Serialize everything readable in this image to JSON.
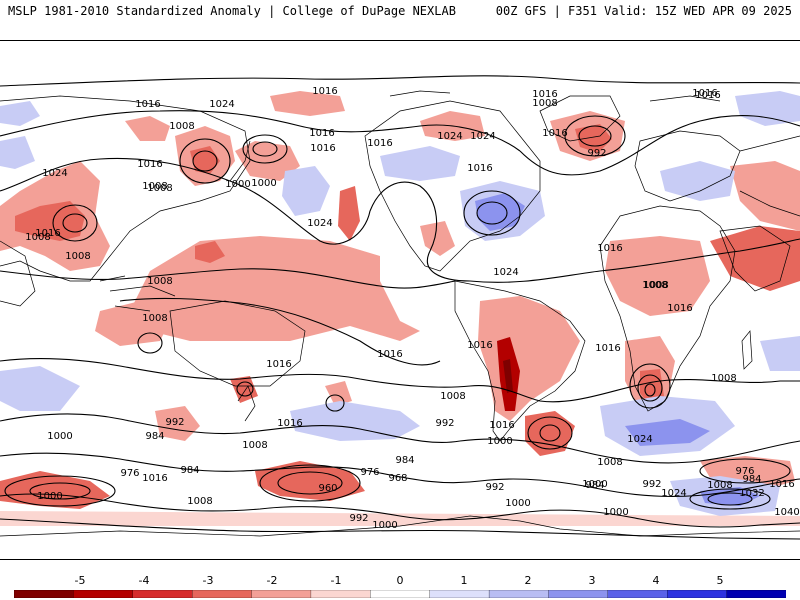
{
  "header": {
    "left": "MSLP 1981-2010 Standardized Anomaly | College of DuPage NEXLAB",
    "right": "00Z GFS | F351 Valid: 15Z WED APR 09 2025"
  },
  "colors": {
    "ocean": "#ffffff",
    "coast": "#000000",
    "isobar": "#000000",
    "neg_strong": "#7f0000",
    "neg_1": "#f3a097",
    "neg_2": "#e6675c",
    "pos_1": "#c8ccf5",
    "pos_2": "#8c93ee"
  },
  "colorbar": {
    "ticks": [
      "-5",
      "-4",
      "-3",
      "-2",
      "-1",
      "0",
      "1",
      "2",
      "3",
      "4",
      "5"
    ],
    "colors": [
      "#7f0000",
      "#b30000",
      "#d62b2b",
      "#e6675c",
      "#f3a097",
      "#fbd6d1",
      "#ffffff",
      "#dde0fb",
      "#b8bdf3",
      "#8c93ee",
      "#5a61e8",
      "#2c32e0",
      "#0000b0"
    ]
  },
  "isobar_labels": [
    {
      "text": "1016",
      "id": "l1"
    },
    {
      "text": "1024",
      "id": "l2"
    },
    {
      "text": "1016",
      "id": "l3"
    },
    {
      "text": "1016",
      "id": "l4"
    },
    {
      "text": "1008",
      "id": "l5"
    },
    {
      "text": "1016",
      "id": "l6"
    },
    {
      "text": "1016",
      "id": "l7"
    },
    {
      "text": "1000",
      "id": "l8"
    },
    {
      "text": "1024",
      "id": "l9"
    },
    {
      "text": "1008",
      "id": "l10"
    },
    {
      "text": "1016",
      "id": "l11"
    },
    {
      "text": "1024",
      "id": "l12"
    },
    {
      "text": "1024",
      "id": "l13"
    },
    {
      "text": "1016",
      "id": "l14"
    },
    {
      "text": "1008",
      "id": "l15"
    },
    {
      "text": "1008",
      "id": "l16"
    },
    {
      "text": "1000",
      "id": "l17"
    },
    {
      "text": "992",
      "id": "l18"
    },
    {
      "text": "1016",
      "id": "l19"
    },
    {
      "text": "1008",
      "id": "l20"
    },
    {
      "text": "1024",
      "id": "l21"
    },
    {
      "text": "1016",
      "id": "l22"
    },
    {
      "text": "1016",
      "id": "l23"
    },
    {
      "text": "1016",
      "id": "l24"
    },
    {
      "text": "1016",
      "id": "l25"
    },
    {
      "text": "1008",
      "id": "l26"
    },
    {
      "text": "1024",
      "id": "l27"
    },
    {
      "text": "1008",
      "id": "l28"
    },
    {
      "text": "1000",
      "id": "l29"
    },
    {
      "text": "984",
      "id": "l30"
    },
    {
      "text": "992",
      "id": "l31"
    },
    {
      "text": "976",
      "id": "l32"
    },
    {
      "text": "984",
      "id": "l33"
    },
    {
      "text": "1016",
      "id": "l34"
    },
    {
      "text": "1000",
      "id": "l35"
    },
    {
      "text": "1008",
      "id": "l36"
    },
    {
      "text": "960",
      "id": "l37"
    },
    {
      "text": "976",
      "id": "l38"
    },
    {
      "text": "968",
      "id": "l39"
    },
    {
      "text": "984",
      "id": "l40"
    },
    {
      "text": "992",
      "id": "l41"
    },
    {
      "text": "1000",
      "id": "l42"
    },
    {
      "text": "992",
      "id": "l43"
    },
    {
      "text": "1008",
      "id": "l44"
    },
    {
      "text": "1016",
      "id": "l45"
    },
    {
      "text": "1000",
      "id": "l46"
    },
    {
      "text": "984",
      "id": "l47"
    },
    {
      "text": "992",
      "id": "l48"
    },
    {
      "text": "1000",
      "id": "l49"
    },
    {
      "text": "1000",
      "id": "l50"
    },
    {
      "text": "1024",
      "id": "l51"
    },
    {
      "text": "1008",
      "id": "l52"
    },
    {
      "text": "992",
      "id": "l53"
    },
    {
      "text": "1024",
      "id": "l54"
    },
    {
      "text": "1008",
      "id": "l55"
    },
    {
      "text": "976",
      "id": "l56"
    },
    {
      "text": "984",
      "id": "l57"
    },
    {
      "text": "1016",
      "id": "l58"
    },
    {
      "text": "1032",
      "id": "l59"
    },
    {
      "text": "1040",
      "id": "l60"
    },
    {
      "text": "1016",
      "id": "l61"
    },
    {
      "text": "1016",
      "id": "l62"
    },
    {
      "text": "1008",
      "id": "l63"
    },
    {
      "text": "1008",
      "id": "l64"
    },
    {
      "text": "1016",
      "id": "l65"
    },
    {
      "text": "1016",
      "id": "l66"
    },
    {
      "text": "1008",
      "id": "l67"
    },
    {
      "text": "1016",
      "id": "l68"
    },
    {
      "text": "1008",
      "id": "l69"
    },
    {
      "text": "1016",
      "id": "l70"
    },
    {
      "text": "1008",
      "id": "l71"
    },
    {
      "text": "1000",
      "id": "l72"
    },
    {
      "text": "1016",
      "id": "l73"
    }
  ]
}
